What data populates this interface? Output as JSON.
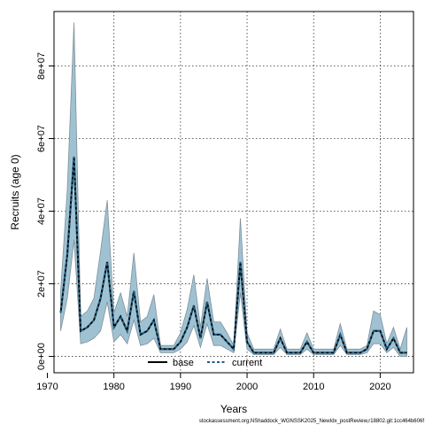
{
  "chart_data": {
    "type": "line",
    "xlabel": "Years",
    "ylabel": "Recruits (age 0)",
    "xlim": [
      1971,
      2025
    ],
    "ylim": [
      -4500000,
      95000000
    ],
    "x_ticks": [
      1970,
      1980,
      1990,
      2000,
      2010,
      2020
    ],
    "x_tick_labels": [
      "1970",
      "1980",
      "1990",
      "2000",
      "2010",
      "2020"
    ],
    "y_ticks": [
      0,
      20000000,
      40000000,
      60000000,
      80000000
    ],
    "y_tick_labels": [
      "0e+00",
      "2e+07",
      "4e+07",
      "6e+07",
      "8e+07"
    ],
    "grid": true,
    "grid_style": "dotted",
    "legend_position": "bottom-center",
    "legend": [
      {
        "label": "base",
        "style": "solid",
        "color": "#000000"
      },
      {
        "label": "current",
        "style": "dashed",
        "color": "#1f5f86"
      }
    ],
    "band_color": "#9fc2d2",
    "band_edge_color": "#7f8f99",
    "x": [
      1972,
      1973,
      1974,
      1975,
      1976,
      1977,
      1978,
      1979,
      1980,
      1981,
      1982,
      1983,
      1984,
      1985,
      1986,
      1987,
      1988,
      1989,
      1990,
      1991,
      1992,
      1993,
      1994,
      1995,
      1996,
      1997,
      1998,
      1999,
      2000,
      2001,
      2002,
      2003,
      2004,
      2005,
      2006,
      2007,
      2008,
      2009,
      2010,
      2011,
      2012,
      2013,
      2014,
      2015,
      2016,
      2017,
      2018,
      2019,
      2020,
      2021,
      2022,
      2023,
      2024
    ],
    "series": [
      {
        "name": "base",
        "values": [
          12000000,
          28000000,
          55000000,
          7000000,
          8000000,
          10000000,
          16000000,
          26000000,
          8000000,
          11000000,
          7000000,
          18000000,
          6000000,
          7000000,
          10000000,
          2000000,
          2000000,
          2000000,
          4000000,
          8000000,
          14000000,
          5000000,
          15000000,
          6000000,
          6000000,
          4000000,
          2000000,
          26000000,
          4000000,
          1000000,
          1000000,
          1000000,
          1000000,
          5000000,
          1000000,
          1000000,
          1000000,
          4000000,
          1000000,
          1000000,
          1000000,
          1000000,
          6000000,
          1000000,
          1000000,
          1000000,
          2000000,
          7000000,
          7000000,
          2000000,
          5000000,
          1000000,
          1000000
        ]
      },
      {
        "name": "current",
        "values": [
          12000000,
          28000000,
          55000000,
          7000000,
          8000000,
          10000000,
          16000000,
          26000000,
          8000000,
          11000000,
          7000000,
          18000000,
          6000000,
          7000000,
          10000000,
          2000000,
          2000000,
          2000000,
          4000000,
          8000000,
          14000000,
          5000000,
          15000000,
          6000000,
          6000000,
          4000000,
          2000000,
          26000000,
          4000000,
          1000000,
          1000000,
          1000000,
          1000000,
          5000000,
          1000000,
          1000000,
          1000000,
          4000000,
          1000000,
          1000000,
          1000000,
          1000000,
          6000000,
          1000000,
          1000000,
          1000000,
          2000000,
          7000000,
          7000000,
          2000000,
          5000000,
          1000000,
          1000000
        ]
      }
    ],
    "band_upper": [
      18000000,
      46000000,
      92000000,
      11000000,
      12500000,
      16000000,
      29000000,
      43000000,
      12000000,
      17500000,
      11000000,
      28500000,
      9500000,
      11000000,
      17000000,
      3000000,
      3000000,
      3000000,
      6500000,
      13000000,
      22500000,
      8000000,
      21500000,
      9500000,
      9500000,
      6500000,
      3000000,
      38000000,
      6500000,
      2000000,
      2000000,
      2000000,
      2000000,
      7500000,
      2000000,
      2000000,
      2000000,
      6500000,
      2000000,
      2000000,
      2000000,
      2000000,
      9000000,
      2000000,
      2000000,
      2000000,
      3000000,
      12500000,
      11500000,
      3500000,
      8000000,
      2000000,
      8000000
    ],
    "band_lower": [
      7000000,
      16000000,
      32000000,
      3500000,
      4000000,
      5000000,
      7000000,
      15000000,
      4000000,
      6000000,
      3500000,
      10000000,
      3000000,
      3500000,
      5000000,
      1000000,
      1000000,
      1000000,
      2000000,
      4000000,
      8500000,
      2500000,
      9000000,
      3000000,
      3000000,
      2000000,
      1000000,
      17500000,
      2000000,
      500000,
      500000,
      500000,
      500000,
      2500000,
      500000,
      500000,
      500000,
      2000000,
      500000,
      500000,
      500000,
      500000,
      3000000,
      500000,
      500000,
      500000,
      1000000,
      3500000,
      3500000,
      1000000,
      2500000,
      0,
      0
    ]
  },
  "footnote": "stockassessment.org,NShaddock_WGNSSK2025_NewIdx_postReview,r18802.git:1cc464b606f"
}
